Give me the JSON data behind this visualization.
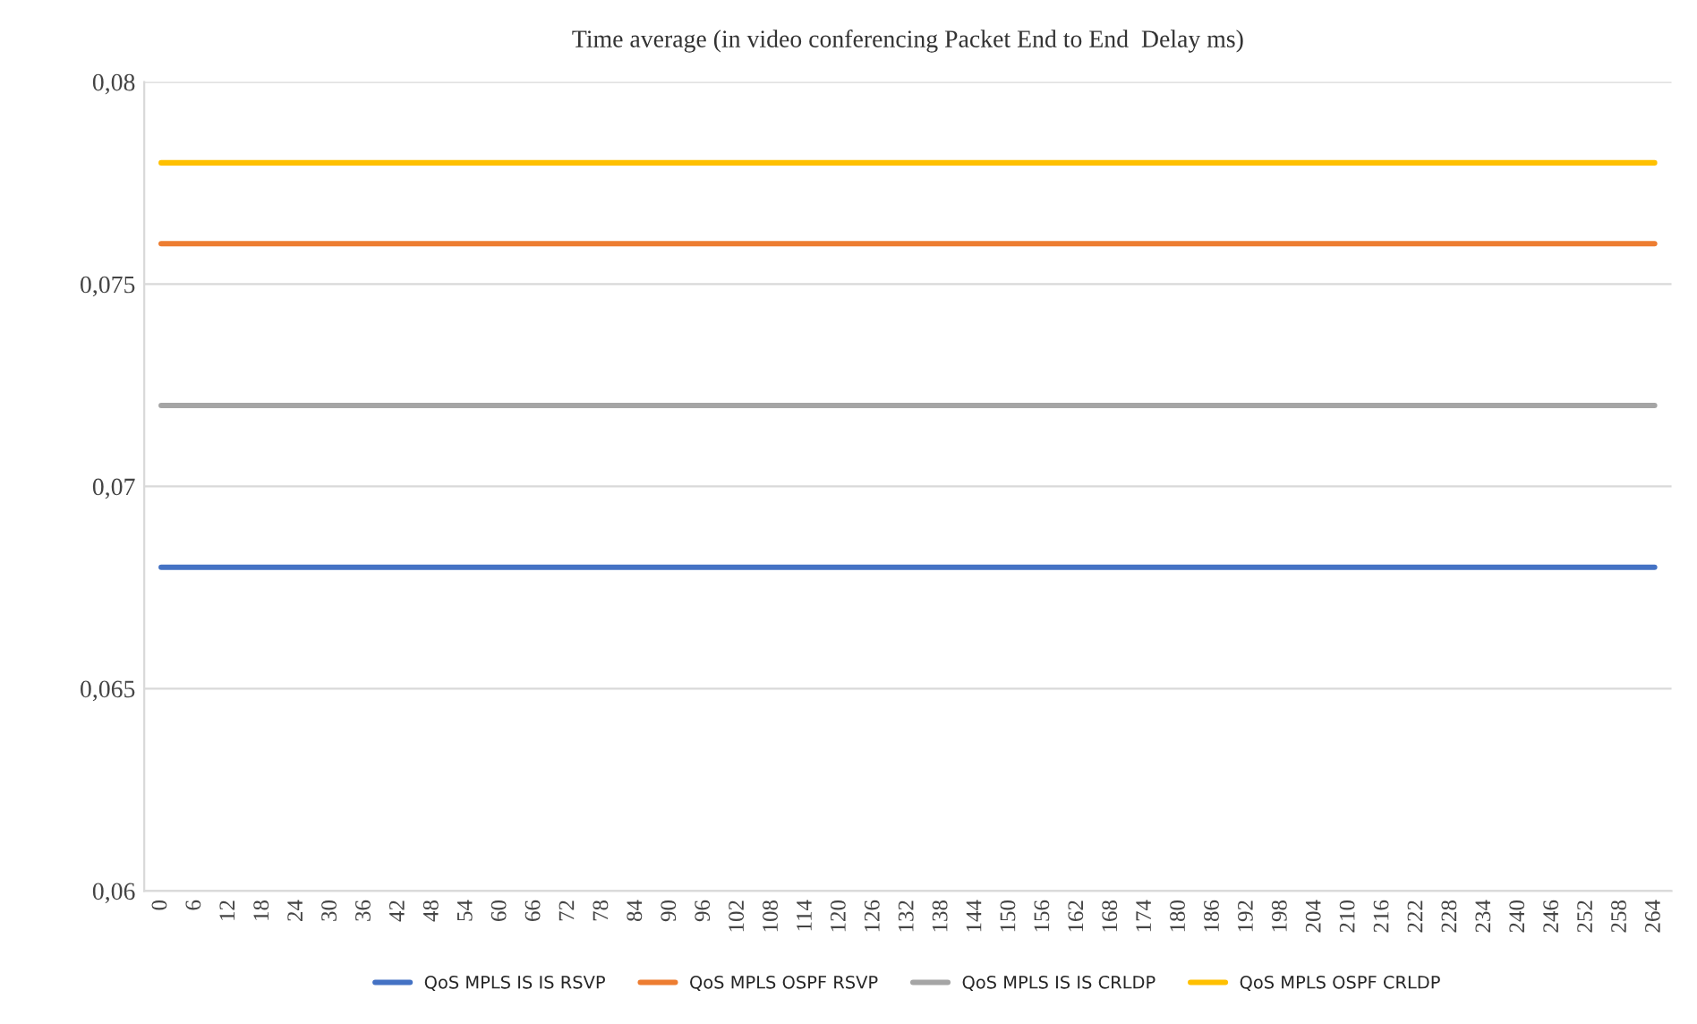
{
  "chart_data": {
    "type": "line",
    "title": "Time average (in video conferencing Packet End to End  Delay ms)",
    "categories": [
      "0",
      "6",
      "12",
      "18",
      "24",
      "30",
      "36",
      "42",
      "48",
      "54",
      "60",
      "66",
      "72",
      "78",
      "84",
      "90",
      "96",
      "102",
      "108",
      "114",
      "120",
      "126",
      "132",
      "138",
      "144",
      "150",
      "156",
      "162",
      "168",
      "174",
      "180",
      "186",
      "192",
      "198",
      "204",
      "210",
      "216",
      "222",
      "228",
      "234",
      "240",
      "246",
      "252",
      "258",
      "264"
    ],
    "series": [
      {
        "name": "QoS MPLS IS IS RSVP",
        "color": "#4472c4",
        "values": [
          0.068,
          0.068,
          0.068,
          0.068,
          0.068,
          0.068,
          0.068,
          0.068,
          0.068,
          0.068,
          0.068,
          0.068,
          0.068,
          0.068,
          0.068,
          0.068,
          0.068,
          0.068,
          0.068,
          0.068,
          0.068,
          0.068,
          0.068,
          0.068,
          0.068,
          0.068,
          0.068,
          0.068,
          0.068,
          0.068,
          0.068,
          0.068,
          0.068,
          0.068,
          0.068,
          0.068,
          0.068,
          0.068,
          0.068,
          0.068,
          0.068,
          0.068,
          0.068,
          0.068,
          0.068
        ]
      },
      {
        "name": "QoS MPLS OSPF RSVP",
        "color": "#ed7d31",
        "values": [
          0.076,
          0.076,
          0.076,
          0.076,
          0.076,
          0.076,
          0.076,
          0.076,
          0.076,
          0.076,
          0.076,
          0.076,
          0.076,
          0.076,
          0.076,
          0.076,
          0.076,
          0.076,
          0.076,
          0.076,
          0.076,
          0.076,
          0.076,
          0.076,
          0.076,
          0.076,
          0.076,
          0.076,
          0.076,
          0.076,
          0.076,
          0.076,
          0.076,
          0.076,
          0.076,
          0.076,
          0.076,
          0.076,
          0.076,
          0.076,
          0.076,
          0.076,
          0.076,
          0.076,
          0.076
        ]
      },
      {
        "name": "QoS MPLS IS IS CRLDP",
        "color": "#a5a5a5",
        "values": [
          0.072,
          0.072,
          0.072,
          0.072,
          0.072,
          0.072,
          0.072,
          0.072,
          0.072,
          0.072,
          0.072,
          0.072,
          0.072,
          0.072,
          0.072,
          0.072,
          0.072,
          0.072,
          0.072,
          0.072,
          0.072,
          0.072,
          0.072,
          0.072,
          0.072,
          0.072,
          0.072,
          0.072,
          0.072,
          0.072,
          0.072,
          0.072,
          0.072,
          0.072,
          0.072,
          0.072,
          0.072,
          0.072,
          0.072,
          0.072,
          0.072,
          0.072,
          0.072,
          0.072,
          0.072
        ]
      },
      {
        "name": "QoS MPLS OSPF CRLDP",
        "color": "#ffc000",
        "values": [
          0.078,
          0.078,
          0.078,
          0.078,
          0.078,
          0.078,
          0.078,
          0.078,
          0.078,
          0.078,
          0.078,
          0.078,
          0.078,
          0.078,
          0.078,
          0.078,
          0.078,
          0.078,
          0.078,
          0.078,
          0.078,
          0.078,
          0.078,
          0.078,
          0.078,
          0.078,
          0.078,
          0.078,
          0.078,
          0.078,
          0.078,
          0.078,
          0.078,
          0.078,
          0.078,
          0.078,
          0.078,
          0.078,
          0.078,
          0.078,
          0.078,
          0.078,
          0.078,
          0.078,
          0.078
        ]
      }
    ],
    "ylim": [
      0.06,
      0.08
    ],
    "yticks": [
      {
        "value": 0.06,
        "label": "0,06"
      },
      {
        "value": 0.065,
        "label": "0,065"
      },
      {
        "value": 0.07,
        "label": "0,07"
      },
      {
        "value": 0.075,
        "label": "0,075"
      },
      {
        "value": 0.08,
        "label": "0,08"
      }
    ],
    "grid": "y",
    "legend": "bottom",
    "marker": "none",
    "line_style": "solid"
  }
}
